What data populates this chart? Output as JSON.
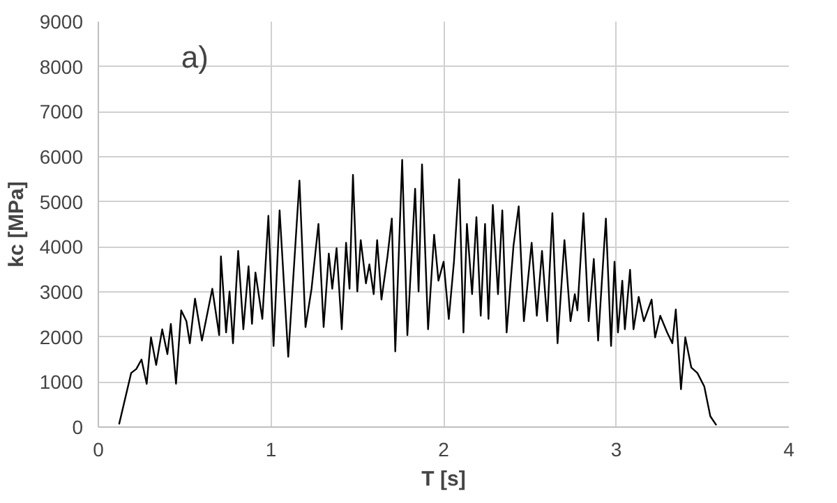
{
  "chart_data": {
    "type": "line",
    "xlabel": "T [s]",
    "ylabel": "kc [MPa]",
    "annotations": [
      "a)"
    ],
    "xlim": [
      0,
      4
    ],
    "ylim": [
      0,
      9000
    ],
    "xticks": [
      0,
      1,
      2,
      3,
      4
    ],
    "yticks": [
      0,
      1000,
      2000,
      3000,
      4000,
      5000,
      6000,
      7000,
      8000,
      9000
    ],
    "grid": true,
    "marker": "none",
    "line_style": "solid",
    "series": [
      {
        "color": "#000000",
        "x": [
          0.12,
          0.19,
          0.22,
          0.25,
          0.28,
          0.305,
          0.335,
          0.37,
          0.4,
          0.42,
          0.45,
          0.48,
          0.51,
          0.53,
          0.56,
          0.6,
          0.66,
          0.7,
          0.71,
          0.74,
          0.76,
          0.78,
          0.81,
          0.84,
          0.87,
          0.89,
          0.91,
          0.95,
          0.985,
          1.015,
          1.05,
          1.1,
          1.165,
          1.2,
          1.235,
          1.275,
          1.305,
          1.335,
          1.355,
          1.38,
          1.41,
          1.435,
          1.455,
          1.475,
          1.5,
          1.52,
          1.55,
          1.57,
          1.595,
          1.615,
          1.64,
          1.675,
          1.7,
          1.72,
          1.76,
          1.79,
          1.835,
          1.855,
          1.875,
          1.91,
          1.945,
          1.97,
          2.0,
          2.03,
          2.06,
          2.09,
          2.115,
          2.135,
          2.165,
          2.19,
          2.215,
          2.24,
          2.26,
          2.285,
          2.315,
          2.34,
          2.365,
          2.405,
          2.435,
          2.465,
          2.51,
          2.54,
          2.57,
          2.6,
          2.63,
          2.66,
          2.7,
          2.735,
          2.76,
          2.775,
          2.81,
          2.84,
          2.87,
          2.895,
          2.94,
          2.97,
          2.99,
          3.01,
          3.035,
          3.05,
          3.08,
          3.1,
          3.13,
          3.16,
          3.205,
          3.225,
          3.255,
          3.295,
          3.325,
          3.345,
          3.375,
          3.4,
          3.435,
          3.47,
          3.51,
          3.545,
          3.58
        ],
        "values": [
          60,
          1200,
          1290,
          1500,
          960,
          1990,
          1380,
          2170,
          1620,
          2290,
          960,
          2590,
          2350,
          1860,
          2850,
          1920,
          3070,
          2040,
          3790,
          2100,
          3010,
          1860,
          3910,
          2170,
          3570,
          2290,
          3430,
          2400,
          4690,
          1800,
          4810,
          1560,
          5470,
          2220,
          3070,
          4510,
          2220,
          3850,
          3070,
          3970,
          2170,
          4090,
          3070,
          5600,
          3010,
          4150,
          3190,
          3610,
          2950,
          4150,
          2830,
          3790,
          4630,
          1680,
          5930,
          2040,
          5290,
          3010,
          5830,
          2170,
          4270,
          3250,
          3670,
          2400,
          3670,
          5500,
          2100,
          4510,
          2950,
          4660,
          2470,
          4510,
          2400,
          4930,
          2950,
          4810,
          2100,
          4030,
          4900,
          2350,
          4090,
          2470,
          3910,
          2350,
          4750,
          1860,
          4150,
          2350,
          2950,
          2590,
          4750,
          2350,
          3730,
          1920,
          4630,
          1800,
          3670,
          2100,
          3250,
          2170,
          3490,
          2170,
          2890,
          2350,
          2830,
          1990,
          2470,
          2100,
          1860,
          2610,
          840,
          1990,
          1320,
          1200,
          900,
          240,
          40
        ]
      }
    ]
  }
}
